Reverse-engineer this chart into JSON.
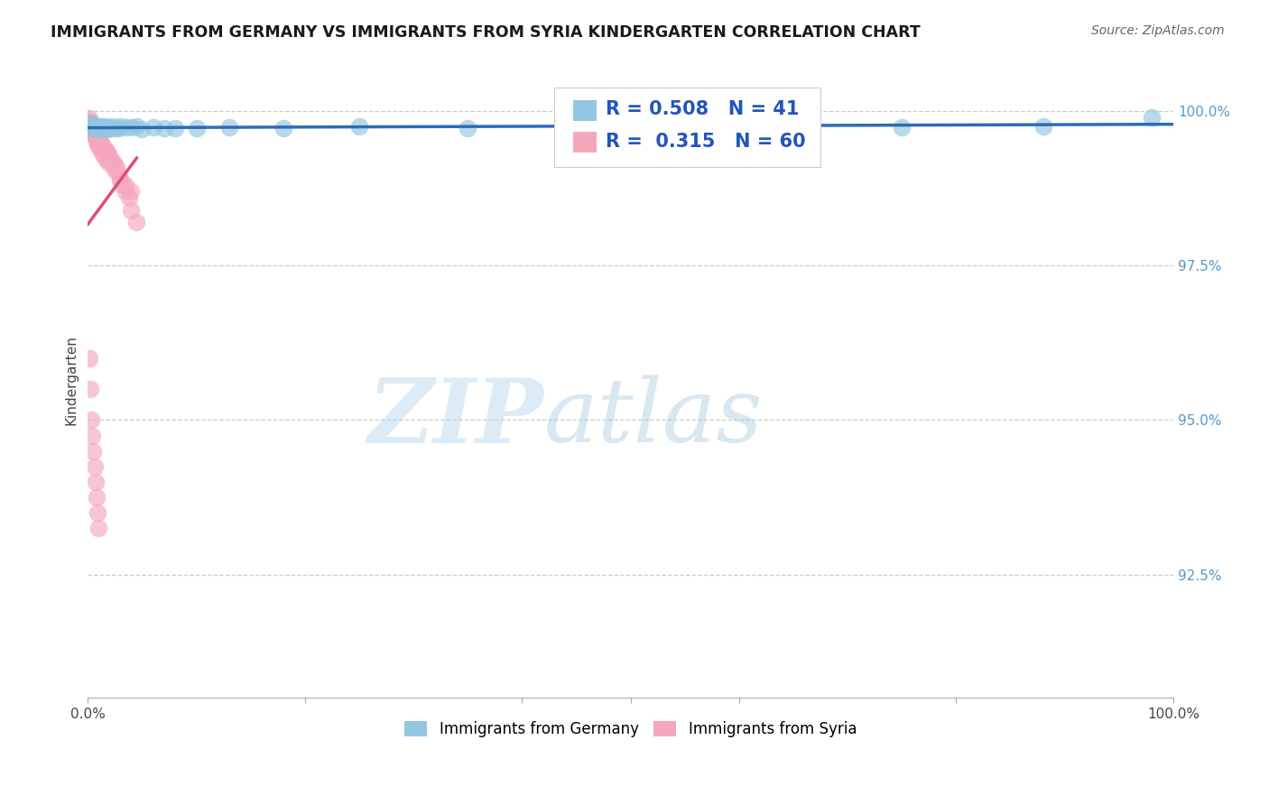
{
  "title": "IMMIGRANTS FROM GERMANY VS IMMIGRANTS FROM SYRIA KINDERGARTEN CORRELATION CHART",
  "source": "Source: ZipAtlas.com",
  "ylabel": "Kindergarten",
  "ytick_labels": [
    "92.5%",
    "95.0%",
    "97.5%",
    "100.0%"
  ],
  "ytick_values": [
    0.925,
    0.95,
    0.975,
    1.0
  ],
  "xlim": [
    0.0,
    1.0
  ],
  "ylim": [
    0.905,
    1.008
  ],
  "legend_blue_R": 0.508,
  "legend_blue_N": 41,
  "legend_pink_R": 0.315,
  "legend_pink_N": 60,
  "blue_color": "#93C6E0",
  "pink_color": "#F5A8BC",
  "trend_blue_color": "#2B6CB8",
  "trend_pink_color": "#D94F72",
  "watermark_zip": "ZIP",
  "watermark_atlas": "atlas",
  "germany_x": [
    0.002,
    0.003,
    0.004,
    0.005,
    0.006,
    0.007,
    0.008,
    0.009,
    0.01,
    0.011,
    0.012,
    0.013,
    0.014,
    0.015,
    0.016,
    0.017,
    0.018,
    0.019,
    0.02,
    0.022,
    0.025,
    0.028,
    0.03,
    0.035,
    0.04,
    0.045,
    0.05,
    0.06,
    0.07,
    0.08,
    0.1,
    0.13,
    0.18,
    0.25,
    0.35,
    0.45,
    0.55,
    0.65,
    0.75,
    0.88,
    0.98
  ],
  "germany_y": [
    0.9975,
    0.998,
    0.9978,
    0.9972,
    0.9976,
    0.9971,
    0.9973,
    0.9974,
    0.9972,
    0.9975,
    0.9973,
    0.9972,
    0.9974,
    0.9975,
    0.9973,
    0.9972,
    0.9974,
    0.9971,
    0.9972,
    0.9975,
    0.9973,
    0.9972,
    0.9975,
    0.9974,
    0.9974,
    0.9975,
    0.9971,
    0.9974,
    0.9972,
    0.9973,
    0.9972,
    0.9974,
    0.9973,
    0.9975,
    0.9973,
    0.9974,
    0.9975,
    0.9973,
    0.9974,
    0.9975,
    0.999
  ],
  "syria_x": [
    0.001,
    0.002,
    0.003,
    0.004,
    0.005,
    0.006,
    0.007,
    0.008,
    0.009,
    0.01,
    0.011,
    0.012,
    0.013,
    0.014,
    0.015,
    0.016,
    0.017,
    0.018,
    0.019,
    0.02,
    0.022,
    0.024,
    0.026,
    0.028,
    0.03,
    0.032,
    0.035,
    0.038,
    0.04,
    0.045,
    0.001,
    0.002,
    0.003,
    0.004,
    0.005,
    0.006,
    0.007,
    0.008,
    0.009,
    0.01,
    0.011,
    0.012,
    0.013,
    0.015,
    0.017,
    0.02,
    0.025,
    0.03,
    0.035,
    0.04,
    0.001,
    0.002,
    0.003,
    0.004,
    0.005,
    0.006,
    0.007,
    0.008,
    0.009,
    0.01
  ],
  "syria_y": [
    0.9985,
    0.998,
    0.9975,
    0.997,
    0.9968,
    0.9965,
    0.996,
    0.9958,
    0.9955,
    0.9952,
    0.995,
    0.9948,
    0.9945,
    0.9942,
    0.994,
    0.9938,
    0.9935,
    0.9932,
    0.993,
    0.9925,
    0.992,
    0.9915,
    0.991,
    0.99,
    0.989,
    0.988,
    0.987,
    0.986,
    0.984,
    0.982,
    0.9988,
    0.9982,
    0.9977,
    0.9971,
    0.9967,
    0.9962,
    0.9957,
    0.9952,
    0.9947,
    0.9943,
    0.994,
    0.9937,
    0.9933,
    0.9928,
    0.9922,
    0.9915,
    0.9905,
    0.989,
    0.988,
    0.987,
    0.96,
    0.955,
    0.95,
    0.9475,
    0.945,
    0.9425,
    0.94,
    0.9375,
    0.935,
    0.9325
  ]
}
